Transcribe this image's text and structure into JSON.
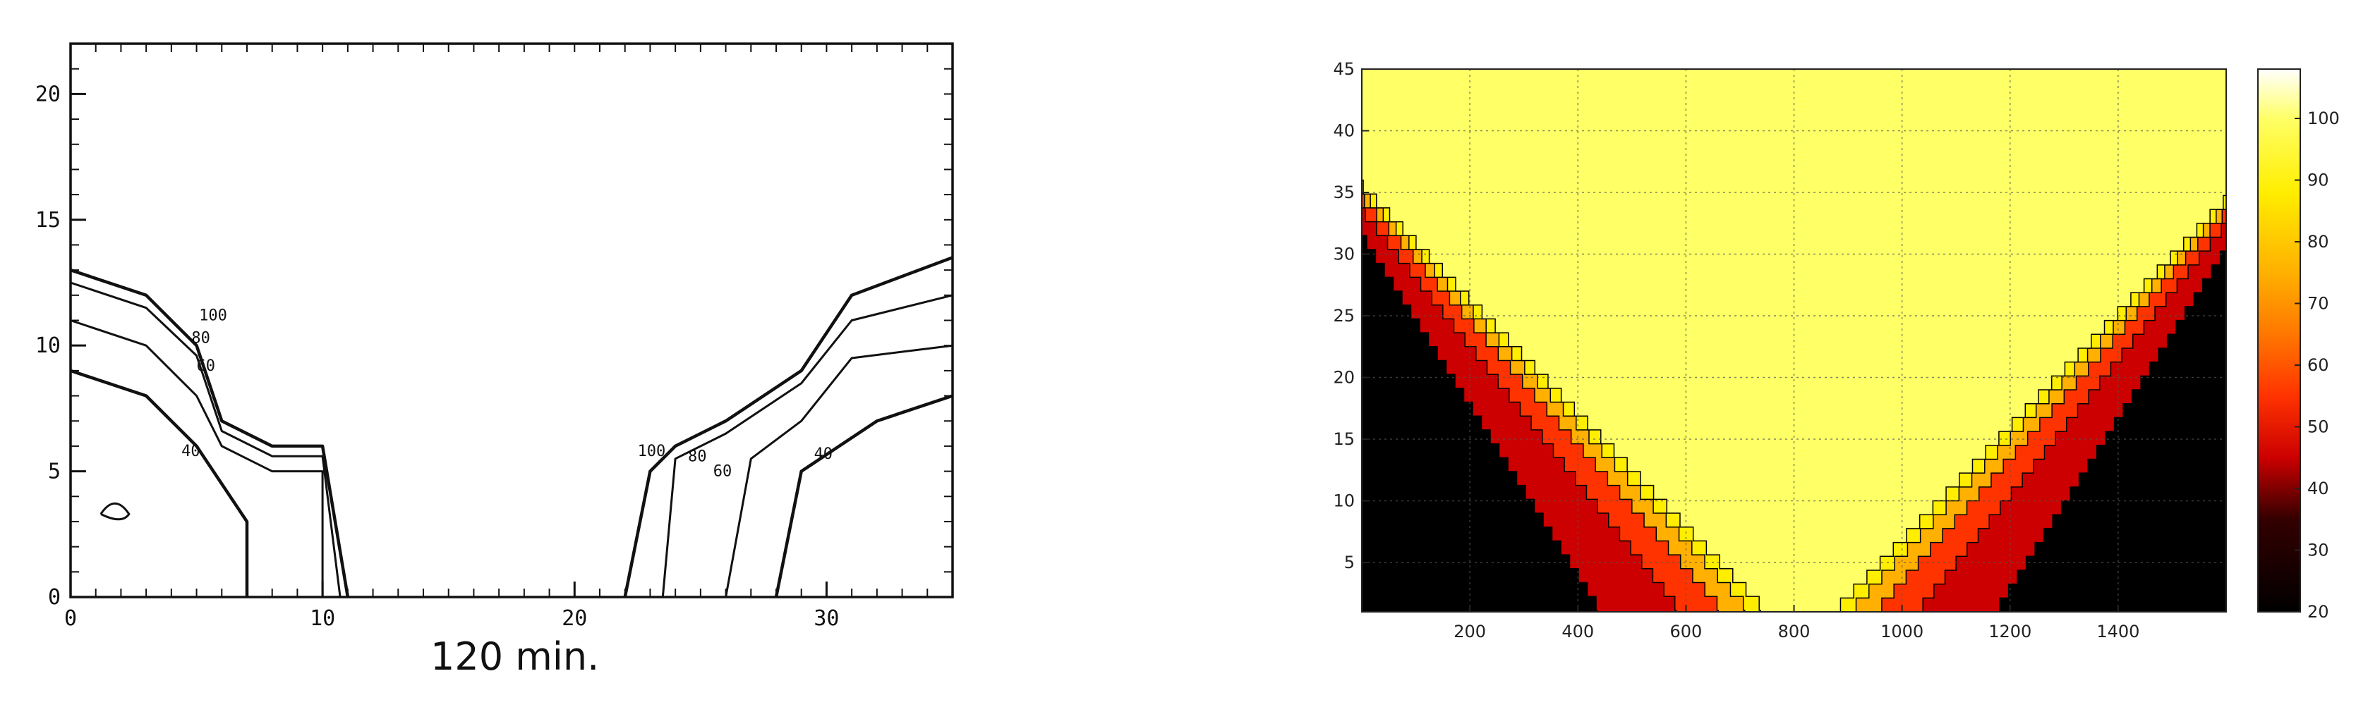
{
  "left_chart_caption": "120 min.",
  "right_colorbar": {
    "ticks": [
      20,
      30,
      40,
      50,
      60,
      70,
      80,
      90,
      100
    ],
    "range": [
      20,
      108
    ],
    "stops": [
      {
        "value": 20,
        "color": "#000000"
      },
      {
        "value": 35,
        "color": "#330000"
      },
      {
        "value": 45,
        "color": "#cc0000"
      },
      {
        "value": 55,
        "color": "#ff3300"
      },
      {
        "value": 65,
        "color": "#ff7700"
      },
      {
        "value": 75,
        "color": "#ffb000"
      },
      {
        "value": 88,
        "color": "#ffee00"
      },
      {
        "value": 100,
        "color": "#ffff66"
      },
      {
        "value": 108,
        "color": "#ffffff"
      }
    ]
  },
  "chart_data": [
    {
      "type": "contour",
      "title": "120 min.",
      "xlim": [
        0,
        35
      ],
      "ylim": [
        0,
        22
      ],
      "x_ticks": [
        0,
        10,
        20,
        30
      ],
      "y_ticks": [
        0,
        5,
        10,
        15,
        20
      ],
      "contour_labels": [
        "100",
        "80",
        "60",
        "40",
        "100",
        "80",
        "60",
        "40"
      ],
      "contours": [
        {
          "level": 100,
          "side": "left",
          "points": [
            [
              0,
              13
            ],
            [
              3,
              12
            ],
            [
              5,
              10
            ],
            [
              6,
              7
            ],
            [
              8,
              6
            ],
            [
              10,
              6
            ],
            [
              11,
              0
            ]
          ]
        },
        {
          "level": 80,
          "side": "left",
          "points": [
            [
              0,
              12.5
            ],
            [
              3,
              11.5
            ],
            [
              5,
              9.6
            ],
            [
              6,
              6.6
            ],
            [
              8,
              5.6
            ],
            [
              10,
              5.6
            ],
            [
              10.7,
              0
            ]
          ]
        },
        {
          "level": 60,
          "side": "left",
          "points": [
            [
              0,
              11
            ],
            [
              3,
              10
            ],
            [
              5,
              8
            ],
            [
              6,
              6
            ],
            [
              8,
              5
            ],
            [
              10,
              5
            ],
            [
              10,
              0
            ]
          ]
        },
        {
          "level": 40,
          "side": "left",
          "points": [
            [
              0,
              9
            ],
            [
              3,
              8
            ],
            [
              5,
              6
            ],
            [
              7,
              3
            ],
            [
              7,
              0
            ]
          ]
        },
        {
          "level": 100,
          "side": "right",
          "points": [
            [
              35,
              13.5
            ],
            [
              31,
              12
            ],
            [
              29,
              9
            ],
            [
              26,
              7
            ],
            [
              24,
              6
            ],
            [
              23,
              5
            ],
            [
              22,
              0
            ]
          ]
        },
        {
          "level": 80,
          "side": "right",
          "points": [
            [
              35,
              12
            ],
            [
              31,
              11
            ],
            [
              29,
              8.5
            ],
            [
              26,
              6.5
            ],
            [
              24,
              5.5
            ],
            [
              23.5,
              0
            ]
          ]
        },
        {
          "level": 60,
          "side": "right",
          "points": [
            [
              35,
              10
            ],
            [
              31,
              9.5
            ],
            [
              29,
              7
            ],
            [
              27,
              5.5
            ],
            [
              26,
              0
            ]
          ]
        },
        {
          "level": 40,
          "side": "right",
          "points": [
            [
              35,
              8
            ],
            [
              32,
              7
            ],
            [
              29,
              5
            ],
            [
              28,
              0
            ]
          ]
        }
      ]
    },
    {
      "type": "heatmap",
      "xlim": [
        0,
        1600
      ],
      "ylim": [
        1,
        45
      ],
      "x_ticks": [
        200,
        400,
        600,
        800,
        1000,
        1200,
        1400
      ],
      "y_ticks": [
        5,
        10,
        15,
        20,
        25,
        30,
        35,
        40,
        45
      ],
      "colorbar_range": [
        20,
        108
      ],
      "regions": [
        {
          "value": 100,
          "description_boundary": "yellow interior above V"
        },
        {
          "value": 80
        },
        {
          "value": 60
        },
        {
          "value": 50
        },
        {
          "value": 20
        }
      ],
      "band_boundaries": [
        {
          "value": 95,
          "left": [
            [
              0,
              35
            ],
            [
              760,
              0
            ]
          ],
          "right": [
            [
              1600,
              35
            ],
            [
              840,
              0
            ]
          ]
        },
        {
          "value": 85,
          "left": [
            [
              0,
              34.5
            ],
            [
              730,
              0
            ]
          ],
          "right": [
            [
              1600,
              34.5
            ],
            [
              870,
              0
            ]
          ]
        },
        {
          "value": 70,
          "left": [
            [
              0,
              34
            ],
            [
              680,
              0
            ]
          ],
          "right": [
            [
              1600,
              34
            ],
            [
              920,
              0
            ]
          ]
        },
        {
          "value": 55,
          "left": [
            [
              0,
              33
            ],
            [
              600,
              0
            ]
          ],
          "right": [
            [
              1600,
              33
            ],
            [
              1000,
              0
            ]
          ]
        },
        {
          "value": 40,
          "left": [
            [
              0,
              31
            ],
            [
              450,
              0
            ]
          ],
          "right": [
            [
              1600,
              31
            ],
            [
              1150,
              0
            ]
          ]
        }
      ]
    }
  ]
}
